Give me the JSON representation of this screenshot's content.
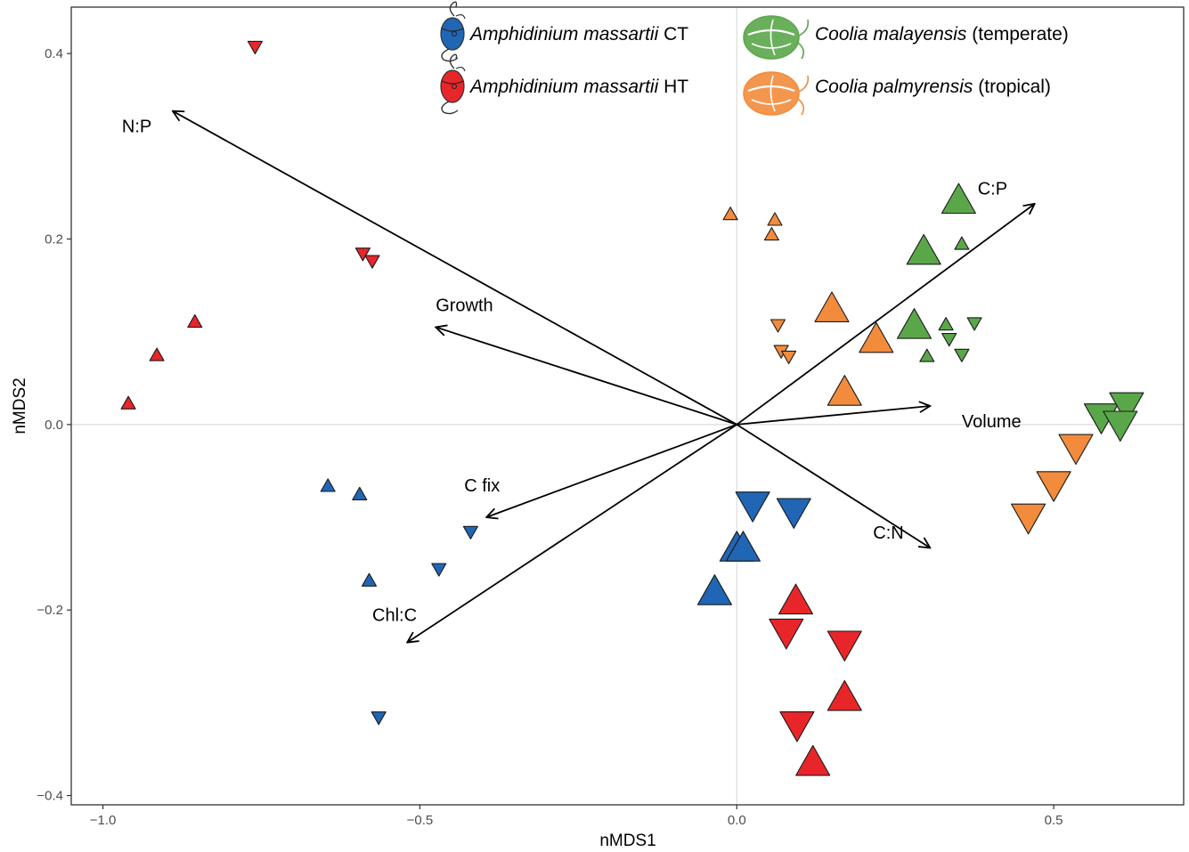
{
  "chart_data": {
    "type": "scatter",
    "xlabel": "nMDS1",
    "ylabel": "nMDS2",
    "xlim": [
      -1.05,
      0.705
    ],
    "ylim": [
      -0.41,
      0.45
    ],
    "x_ticks": [
      {
        "value": -1.0,
        "label": "−1.0"
      },
      {
        "value": -0.5,
        "label": "−0.5"
      },
      {
        "value": 0.0,
        "label": "0.0"
      },
      {
        "value": 0.5,
        "label": "0.5"
      }
    ],
    "y_ticks": [
      {
        "value": 0.4,
        "label": "0.4"
      },
      {
        "value": 0.2,
        "label": "0.2"
      },
      {
        "value": 0.0,
        "label": "0.0"
      },
      {
        "value": -0.2,
        "label": "−0.2"
      },
      {
        "value": -0.4,
        "label": "−0.4"
      }
    ],
    "grid": "zero-lines only",
    "legend_position": "top",
    "legend": [
      {
        "name_italic": "Amphidinium massartii",
        "name_plain": " CT",
        "color": "#2166b5",
        "organism": "amphidinium"
      },
      {
        "name_italic": "Amphidinium massartii",
        "name_plain": " HT",
        "color": "#e8262a",
        "organism": "amphidinium"
      },
      {
        "name_italic": "Coolia malayensis",
        "name_plain": " (temperate)",
        "color": "#5aa74a",
        "organism": "coolia"
      },
      {
        "name_italic": "Coolia palmyrensis",
        "name_plain": " (tropical)",
        "color": "#f28c3c",
        "organism": "coolia"
      }
    ],
    "arrows": [
      {
        "label": "N:P",
        "x": -0.89,
        "y": 0.338,
        "label_x": -0.97,
        "label_y": 0.315
      },
      {
        "label": "Growth",
        "x": -0.475,
        "y": 0.105,
        "label_x": -0.475,
        "label_y": 0.122
      },
      {
        "label": "C fix",
        "x": -0.395,
        "y": -0.1,
        "label_x": -0.43,
        "label_y": -0.072
      },
      {
        "label": "Chl:C",
        "x": -0.52,
        "y": -0.235,
        "label_x": -0.575,
        "label_y": -0.212
      },
      {
        "label": "C:P",
        "x": 0.47,
        "y": 0.238,
        "label_x": 0.38,
        "label_y": 0.248
      },
      {
        "label": "Volume",
        "x": 0.305,
        "y": 0.02,
        "label_x": 0.355,
        "label_y": -0.003
      },
      {
        "label": "C:N",
        "x": 0.305,
        "y": -0.133,
        "label_x": 0.215,
        "label_y": -0.123
      }
    ],
    "series": [
      {
        "name": "Amphidinium massartii CT",
        "color": "#2166b5",
        "points": [
          {
            "x": -0.645,
            "y": -0.067,
            "shape": "up",
            "size": "small"
          },
          {
            "x": -0.595,
            "y": -0.076,
            "shape": "up",
            "size": "small"
          },
          {
            "x": -0.58,
            "y": -0.169,
            "shape": "up",
            "size": "small"
          },
          {
            "x": -0.42,
            "y": -0.115,
            "shape": "down",
            "size": "small"
          },
          {
            "x": -0.47,
            "y": -0.155,
            "shape": "down",
            "size": "small"
          },
          {
            "x": -0.565,
            "y": -0.315,
            "shape": "down",
            "size": "small"
          },
          {
            "x": 0.025,
            "y": -0.085,
            "shape": "down",
            "size": "large"
          },
          {
            "x": 0.09,
            "y": -0.092,
            "shape": "down",
            "size": "large"
          },
          {
            "x": 0.0,
            "y": -0.135,
            "shape": "up",
            "size": "large"
          },
          {
            "x": 0.01,
            "y": -0.135,
            "shape": "up",
            "size": "large"
          },
          {
            "x": -0.035,
            "y": -0.182,
            "shape": "up",
            "size": "large"
          }
        ]
      },
      {
        "name": "Amphidinium massartii HT",
        "color": "#e8262a",
        "points": [
          {
            "x": -0.76,
            "y": 0.408,
            "shape": "down",
            "size": "small"
          },
          {
            "x": -0.59,
            "y": 0.185,
            "shape": "down",
            "size": "small"
          },
          {
            "x": -0.575,
            "y": 0.177,
            "shape": "down",
            "size": "small"
          },
          {
            "x": -0.855,
            "y": 0.11,
            "shape": "up",
            "size": "small"
          },
          {
            "x": -0.915,
            "y": 0.074,
            "shape": "up",
            "size": "small"
          },
          {
            "x": -0.96,
            "y": 0.022,
            "shape": "up",
            "size": "small"
          },
          {
            "x": 0.093,
            "y": -0.192,
            "shape": "up",
            "size": "large"
          },
          {
            "x": 0.078,
            "y": -0.222,
            "shape": "down",
            "size": "large"
          },
          {
            "x": 0.17,
            "y": -0.235,
            "shape": "down",
            "size": "large"
          },
          {
            "x": 0.17,
            "y": -0.296,
            "shape": "up",
            "size": "large"
          },
          {
            "x": 0.095,
            "y": -0.322,
            "shape": "down",
            "size": "large"
          },
          {
            "x": 0.12,
            "y": -0.366,
            "shape": "up",
            "size": "large"
          }
        ]
      },
      {
        "name": "Coolia malayensis (temperate)",
        "color": "#5aa74a",
        "points": [
          {
            "x": 0.35,
            "y": 0.24,
            "shape": "up",
            "size": "large"
          },
          {
            "x": 0.295,
            "y": 0.185,
            "shape": "up",
            "size": "large"
          },
          {
            "x": 0.28,
            "y": 0.105,
            "shape": "up",
            "size": "large"
          },
          {
            "x": 0.355,
            "y": 0.194,
            "shape": "up",
            "size": "small"
          },
          {
            "x": 0.33,
            "y": 0.107,
            "shape": "up",
            "size": "small"
          },
          {
            "x": 0.3,
            "y": 0.073,
            "shape": "up",
            "size": "small"
          },
          {
            "x": 0.375,
            "y": 0.11,
            "shape": "down",
            "size": "small"
          },
          {
            "x": 0.335,
            "y": 0.093,
            "shape": "down",
            "size": "small"
          },
          {
            "x": 0.355,
            "y": 0.076,
            "shape": "down",
            "size": "small"
          },
          {
            "x": 0.575,
            "y": 0.01,
            "shape": "down",
            "size": "large"
          },
          {
            "x": 0.615,
            "y": 0.022,
            "shape": "down",
            "size": "large"
          },
          {
            "x": 0.605,
            "y": 0.002,
            "shape": "down",
            "size": "large"
          }
        ]
      },
      {
        "name": "Coolia palmyrensis (tropical)",
        "color": "#f28c3c",
        "points": [
          {
            "x": -0.01,
            "y": 0.226,
            "shape": "up",
            "size": "small"
          },
          {
            "x": 0.06,
            "y": 0.22,
            "shape": "up",
            "size": "small"
          },
          {
            "x": 0.055,
            "y": 0.204,
            "shape": "up",
            "size": "small"
          },
          {
            "x": 0.065,
            "y": 0.108,
            "shape": "down",
            "size": "small"
          },
          {
            "x": 0.07,
            "y": 0.08,
            "shape": "down",
            "size": "small"
          },
          {
            "x": 0.082,
            "y": 0.074,
            "shape": "down",
            "size": "small"
          },
          {
            "x": 0.15,
            "y": 0.123,
            "shape": "up",
            "size": "large"
          },
          {
            "x": 0.22,
            "y": 0.09,
            "shape": "up",
            "size": "large"
          },
          {
            "x": 0.17,
            "y": 0.033,
            "shape": "up",
            "size": "large"
          },
          {
            "x": 0.535,
            "y": -0.023,
            "shape": "down",
            "size": "large"
          },
          {
            "x": 0.5,
            "y": -0.063,
            "shape": "down",
            "size": "large"
          },
          {
            "x": 0.46,
            "y": -0.098,
            "shape": "down",
            "size": "large"
          }
        ]
      }
    ]
  }
}
